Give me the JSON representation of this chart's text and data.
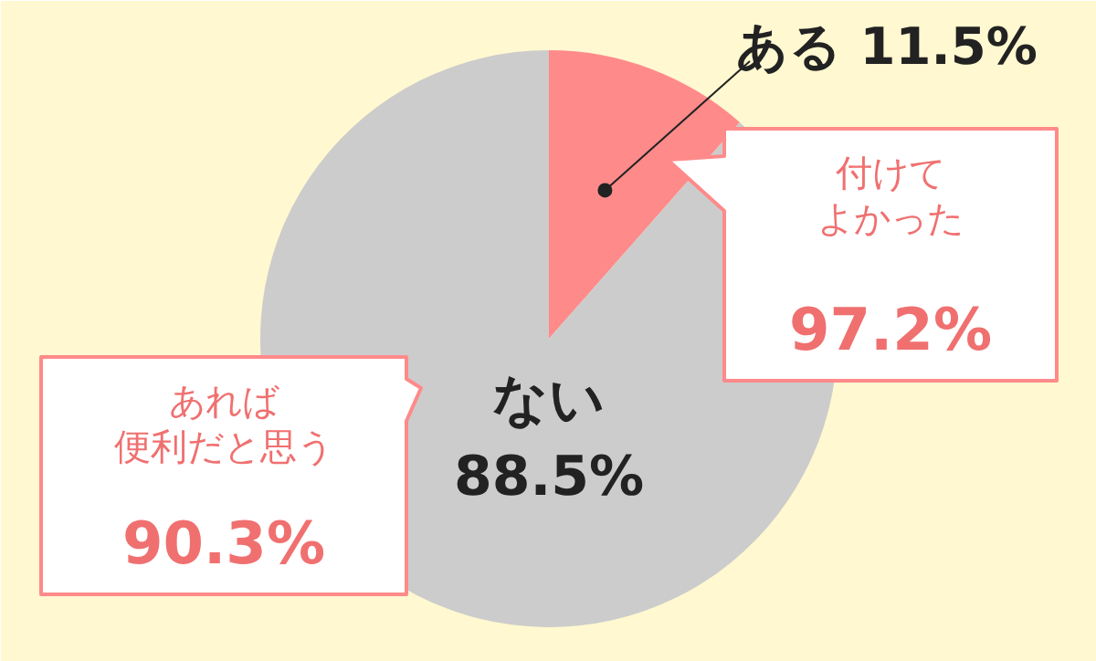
{
  "chart_data": {
    "type": "pie",
    "categories": [
      "ある",
      "ない"
    ],
    "values": [
      11.5,
      88.5
    ],
    "colors": [
      "#ff8a8a",
      "#cccccc"
    ],
    "value_labels": [
      "11.5%",
      "88.5%"
    ],
    "annotations": [
      "付けて",
      "よかった",
      "97.2%",
      "あれば",
      "便利だと思う",
      "90.3%"
    ]
  }
}
